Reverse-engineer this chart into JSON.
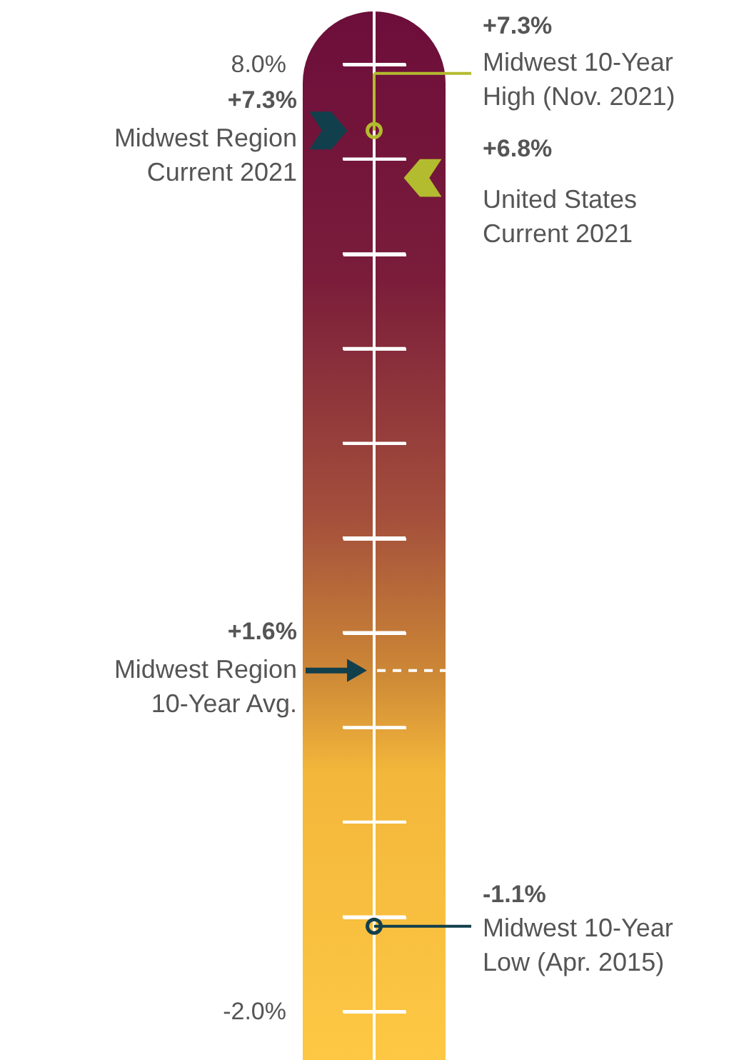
{
  "chart_data": {
    "type": "other",
    "annotations": [
      "8.0%",
      "-2.0%"
    ],
    "categories": [
      "Midwest Region\nCurrent 2021",
      "Midwest 10-Year\nHigh (Nov. 2021)",
      "United States\nCurrent 2021",
      "Midwest Region\n10-Year Avg.",
      "Midwest 10-Year\nLow (Apr. 2015)"
    ],
    "values": [
      7.3,
      7.3,
      6.8,
      1.6,
      -1.1
    ],
    "value_labels": [
      "+7.3%",
      "+7.3%",
      "+6.8%",
      "+1.6%",
      "-1.1%"
    ],
    "colors": [
      "#123f4c",
      "#b3bb2f",
      "#b3bb2f",
      "#123f4c",
      "#123f4c"
    ]
  }
}
